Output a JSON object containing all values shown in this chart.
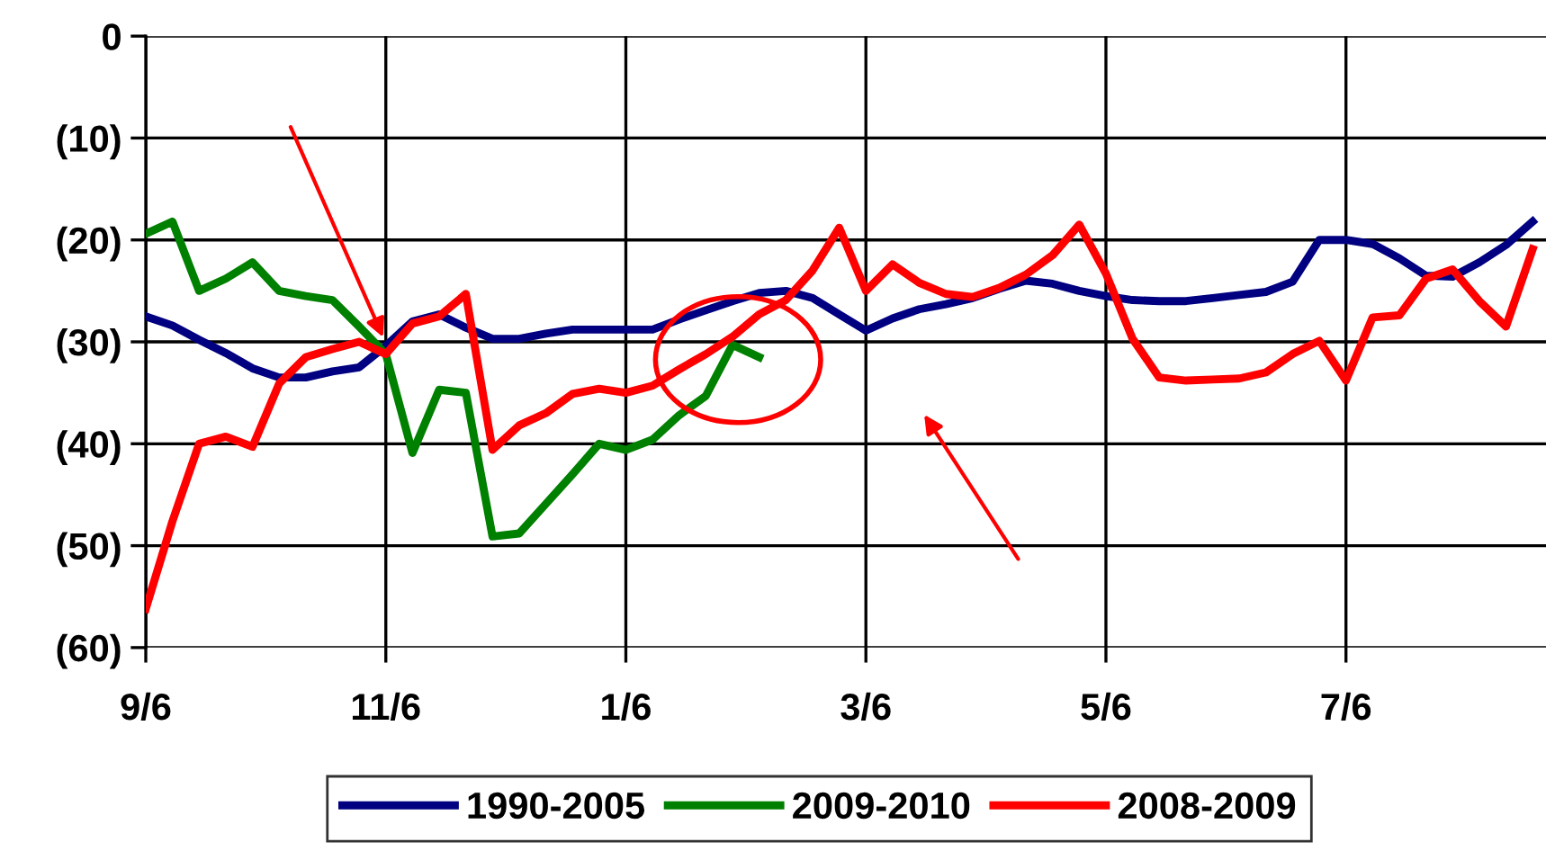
{
  "chart_data": {
    "type": "line",
    "categories": [
      "9/6",
      null,
      null,
      null,
      null,
      null,
      null,
      null,
      null,
      "11/6",
      null,
      null,
      null,
      null,
      null,
      null,
      null,
      null,
      "1/6",
      null,
      null,
      null,
      null,
      null,
      null,
      null,
      null,
      "3/6",
      null,
      null,
      null,
      null,
      null,
      null,
      null,
      null,
      "5/6",
      null,
      null,
      null,
      null,
      null,
      null,
      null,
      null,
      "7/6",
      null,
      null,
      null,
      null,
      null,
      null,
      null
    ],
    "ylim": [
      -60,
      0
    ],
    "yticks": [
      0,
      {
        "value": -10,
        "label": "(10)"
      },
      {
        "value": -20,
        "label": "(20)"
      },
      {
        "value": -30,
        "label": "(30)"
      },
      {
        "value": -40,
        "label": "(40)"
      },
      {
        "value": -50,
        "label": "(50)"
      },
      {
        "value": -60,
        "label": "(60)"
      }
    ],
    "grid": true,
    "legend": "bottom",
    "marker": "none",
    "line_style": "solid",
    "series": [
      {
        "name": "1990-2005",
        "color": "#000080",
        "values": [
          -27.5,
          -28.4,
          -29.8,
          -31.1,
          -32.6,
          -33.5,
          -33.5,
          -32.9,
          -32.5,
          -30.4,
          -28.0,
          -27.3,
          -28.6,
          -29.7,
          -29.7,
          -29.2,
          -28.8,
          -28.8,
          -28.8,
          -28.8,
          -27.8,
          -26.9,
          -26.0,
          -25.2,
          -25,
          -25.7,
          -27.3,
          -28.9,
          -27.7,
          -26.8,
          -26.3,
          -25.7,
          -24.8,
          -24.0,
          -24.3,
          -25.0,
          -25.5,
          -25.9,
          -26.0,
          -26.0,
          -25.7,
          -25.4,
          -25.1,
          -24.1,
          -20,
          -20,
          -20.4,
          -21.8,
          -23.5,
          -23.6,
          -22.2,
          -20.5,
          -18.2
        ]
      },
      {
        "name": "2009-2010",
        "color": "#008000",
        "values": [
          -19.4,
          -18.2,
          -25,
          -23.8,
          -22.2,
          -25,
          -25.5,
          -25.9,
          -28.5,
          -31.2,
          -40.9,
          -34.7,
          -35,
          -49.1,
          -48.8,
          -45.9,
          -43,
          -40,
          -40.6,
          -39.6,
          -37.2,
          -35.3,
          -30.3,
          -31.5,
          null,
          null,
          null,
          null,
          null,
          null,
          null,
          null,
          null,
          null,
          null,
          null,
          null,
          null,
          null,
          null,
          null,
          null,
          null,
          null,
          null,
          null,
          null,
          null,
          null,
          null,
          null,
          null,
          null
        ]
      },
      {
        "name": "2008-2009",
        "color": "#ff0000",
        "values": [
          -56.2,
          -47.6,
          -40,
          -39.3,
          -40.3,
          -34.1,
          -31.5,
          -30.7,
          -30,
          -31.2,
          -28.2,
          -27.5,
          -25.3,
          -40.6,
          -38.2,
          -37,
          -35.1,
          -34.6,
          -35,
          -34.3,
          -32.7,
          -31.2,
          -29.5,
          -27.3,
          -25.9,
          -23,
          -18.8,
          -25,
          -22.4,
          -24.2,
          -25.3,
          -25.6,
          -24.7,
          -23.4,
          -21.5,
          -18.5,
          -23.3,
          -29.7,
          -33.5,
          -33.8,
          -33.7,
          -33.6,
          -33.0,
          -31.2,
          -29.9,
          -33.8,
          -27.6,
          -27.4,
          -23.8,
          -22.9,
          -26.0,
          -28.5,
          -20.9
        ]
      }
    ]
  }
}
